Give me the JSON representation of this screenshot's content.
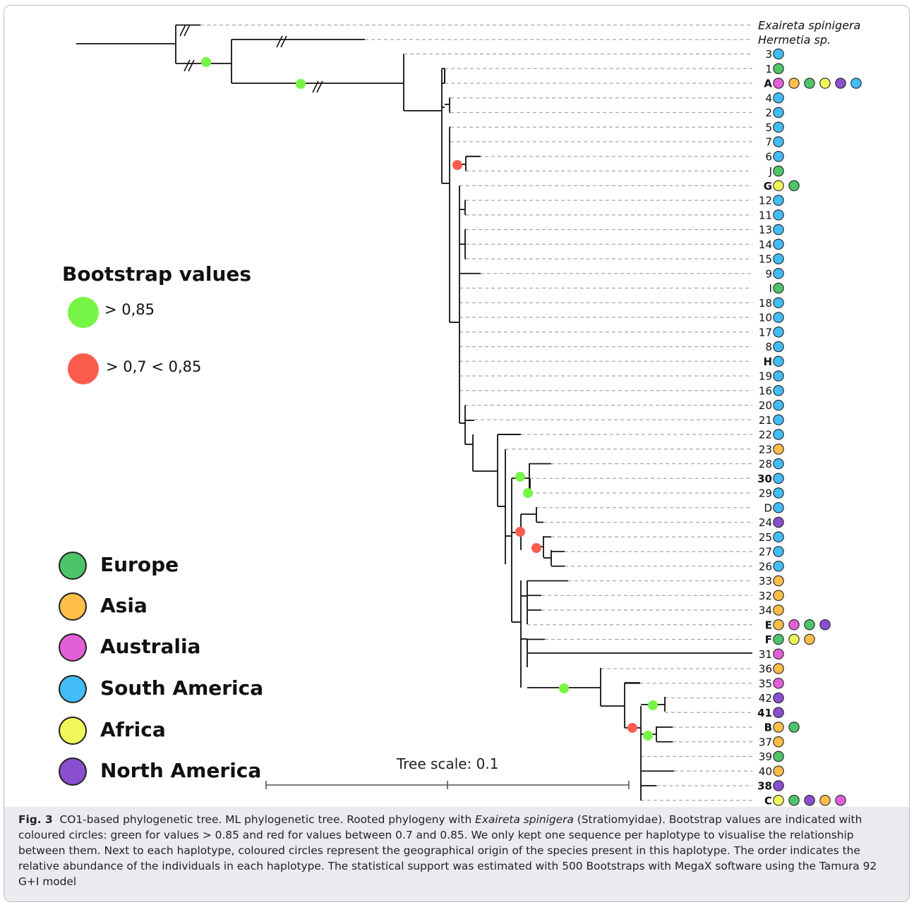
{
  "outgroup_taxa": [
    "Exaireta spinigera",
    "Hermetia sp."
  ],
  "legend": {
    "bootstrap_title": "Bootstrap values",
    "bootstrap_high": "> 0,85",
    "bootstrap_mid": "> 0,7 < 0,85",
    "regions": [
      {
        "name": "Europe",
        "color": "#4ec46a"
      },
      {
        "name": "Asia",
        "color": "#ffbd4a"
      },
      {
        "name": "Australia",
        "color": "#e35fd8"
      },
      {
        "name": "South America",
        "color": "#42bdf7"
      },
      {
        "name": "Africa",
        "color": "#f0f75a"
      },
      {
        "name": "North America",
        "color": "#8a4fcf"
      }
    ],
    "bootstrap_colors": {
      "high": "#76f546",
      "mid": "#fb5c4d"
    }
  },
  "scale": {
    "label": "Tree scale: 0.1"
  },
  "haplotypes": [
    {
      "label": "3",
      "bold": false,
      "origins": [
        "South America"
      ]
    },
    {
      "label": "1",
      "bold": false,
      "origins": [
        "Europe"
      ]
    },
    {
      "label": "A",
      "bold": true,
      "origins": [
        "Australia",
        "Asia",
        "Europe",
        "Africa",
        "North America",
        "South America"
      ]
    },
    {
      "label": "4",
      "bold": false,
      "origins": [
        "South America"
      ]
    },
    {
      "label": "2",
      "bold": false,
      "origins": [
        "South America"
      ]
    },
    {
      "label": "5",
      "bold": false,
      "origins": [
        "South America"
      ]
    },
    {
      "label": "7",
      "bold": false,
      "origins": [
        "South America"
      ]
    },
    {
      "label": "6",
      "bold": false,
      "origins": [
        "South America"
      ]
    },
    {
      "label": "J",
      "bold": false,
      "origins": [
        "Europe"
      ]
    },
    {
      "label": "G",
      "bold": true,
      "origins": [
        "Africa",
        "Europe"
      ]
    },
    {
      "label": "12",
      "bold": false,
      "origins": [
        "South America"
      ]
    },
    {
      "label": "11",
      "bold": false,
      "origins": [
        "South America"
      ]
    },
    {
      "label": "13",
      "bold": false,
      "origins": [
        "South America"
      ]
    },
    {
      "label": "14",
      "bold": false,
      "origins": [
        "South America"
      ]
    },
    {
      "label": "15",
      "bold": false,
      "origins": [
        "South America"
      ]
    },
    {
      "label": "9",
      "bold": false,
      "origins": [
        "South America"
      ]
    },
    {
      "label": "I",
      "bold": false,
      "origins": [
        "Europe"
      ]
    },
    {
      "label": "18",
      "bold": false,
      "origins": [
        "South America"
      ]
    },
    {
      "label": "10",
      "bold": false,
      "origins": [
        "South America"
      ]
    },
    {
      "label": "17",
      "bold": false,
      "origins": [
        "South America"
      ]
    },
    {
      "label": "8",
      "bold": false,
      "origins": [
        "South America"
      ]
    },
    {
      "label": "H",
      "bold": true,
      "origins": [
        "South America"
      ]
    },
    {
      "label": "19",
      "bold": false,
      "origins": [
        "South America"
      ]
    },
    {
      "label": "16",
      "bold": false,
      "origins": [
        "South America"
      ]
    },
    {
      "label": "20",
      "bold": false,
      "origins": [
        "South America"
      ]
    },
    {
      "label": "21",
      "bold": false,
      "origins": [
        "South America"
      ]
    },
    {
      "label": "22",
      "bold": false,
      "origins": [
        "South America"
      ]
    },
    {
      "label": "23",
      "bold": false,
      "origins": [
        "Asia"
      ]
    },
    {
      "label": "28",
      "bold": false,
      "origins": [
        "South America"
      ]
    },
    {
      "label": "30",
      "bold": true,
      "origins": [
        "South America"
      ]
    },
    {
      "label": "29",
      "bold": false,
      "origins": [
        "South America"
      ]
    },
    {
      "label": "D",
      "bold": false,
      "origins": [
        "South America"
      ]
    },
    {
      "label": "24",
      "bold": false,
      "origins": [
        "North America"
      ]
    },
    {
      "label": "25",
      "bold": false,
      "origins": [
        "South America"
      ]
    },
    {
      "label": "27",
      "bold": false,
      "origins": [
        "South America"
      ]
    },
    {
      "label": "26",
      "bold": false,
      "origins": [
        "South America"
      ]
    },
    {
      "label": "33",
      "bold": false,
      "origins": [
        "Asia"
      ]
    },
    {
      "label": "32",
      "bold": false,
      "origins": [
        "Asia"
      ]
    },
    {
      "label": "34",
      "bold": false,
      "origins": [
        "Asia"
      ]
    },
    {
      "label": "E",
      "bold": true,
      "origins": [
        "Asia",
        "Australia",
        "Europe",
        "North America"
      ]
    },
    {
      "label": "F",
      "bold": true,
      "origins": [
        "Europe",
        "Africa",
        "Asia"
      ]
    },
    {
      "label": "31",
      "bold": false,
      "origins": [
        "Australia"
      ]
    },
    {
      "label": "36",
      "bold": false,
      "origins": [
        "Asia"
      ]
    },
    {
      "label": "35",
      "bold": false,
      "origins": [
        "Australia"
      ]
    },
    {
      "label": "42",
      "bold": false,
      "origins": [
        "North America"
      ]
    },
    {
      "label": "41",
      "bold": true,
      "origins": [
        "North America"
      ]
    },
    {
      "label": "B",
      "bold": true,
      "origins": [
        "Asia",
        "Europe"
      ]
    },
    {
      "label": "37",
      "bold": false,
      "origins": [
        "Asia"
      ]
    },
    {
      "label": "39",
      "bold": false,
      "origins": [
        "Europe"
      ]
    },
    {
      "label": "40",
      "bold": false,
      "origins": [
        "Asia"
      ]
    },
    {
      "label": "38",
      "bold": true,
      "origins": [
        "North America"
      ]
    },
    {
      "label": "C",
      "bold": true,
      "origins": [
        "Africa",
        "Europe",
        "North America",
        "Asia",
        "Australia"
      ]
    }
  ],
  "caption": {
    "fig": "Fig. 3",
    "t1": "CO1-based phylogenetic tree. ML phylogenetic tree. Rooted phylogeny with ",
    "species": "Exaireta spinigera",
    "t2": " (Stratiomyidae). Bootstrap values are indicated with coloured circles: green for values > 0.85 and red for values between 0.7 and 0.85. We only kept one sequence per haplotype to visualise the relationship between them. Next to each haplotype, coloured circles represent the geographical origin of the species present in this haplotype. The order indicates the relative abundance of the individuals in each haplotype. The statistical support was estimated with 500 Bootstraps with MegaX software using the Tamura 92 G+I model"
  }
}
